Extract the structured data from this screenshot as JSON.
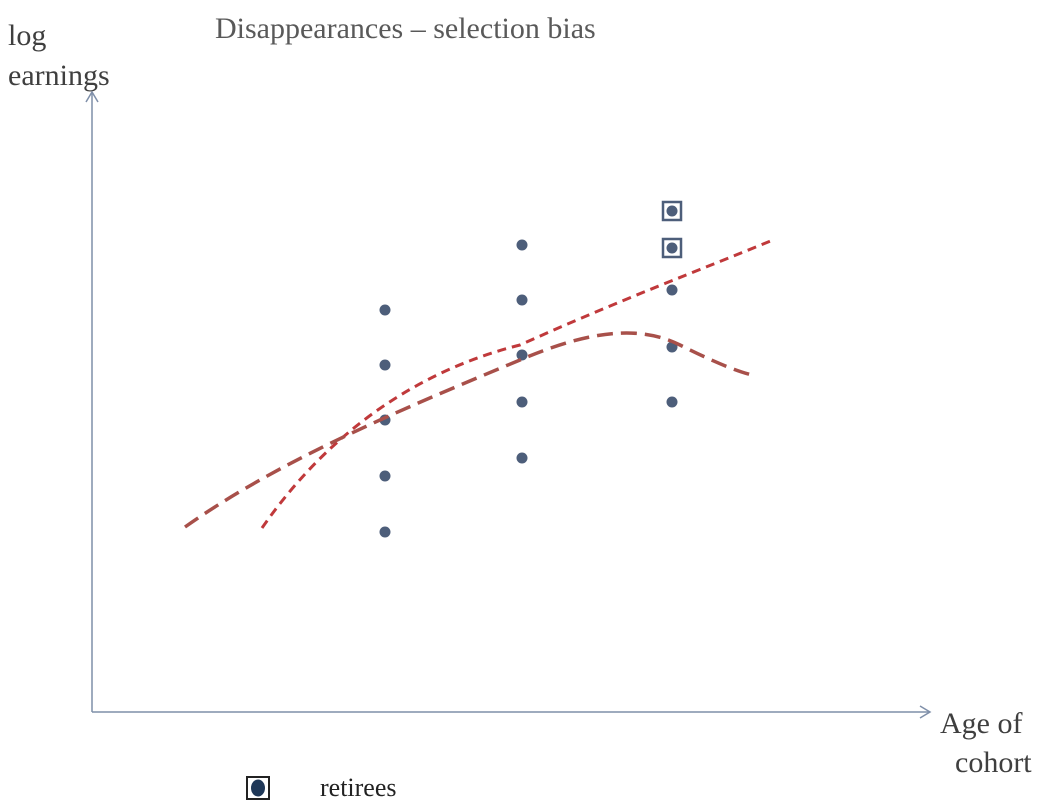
{
  "title": "Disappearances – selection bias",
  "y_axis_label": [
    "log",
    "earnings"
  ],
  "x_axis_label": [
    "Age of",
    "cohort"
  ],
  "legend": "retirees"
}
